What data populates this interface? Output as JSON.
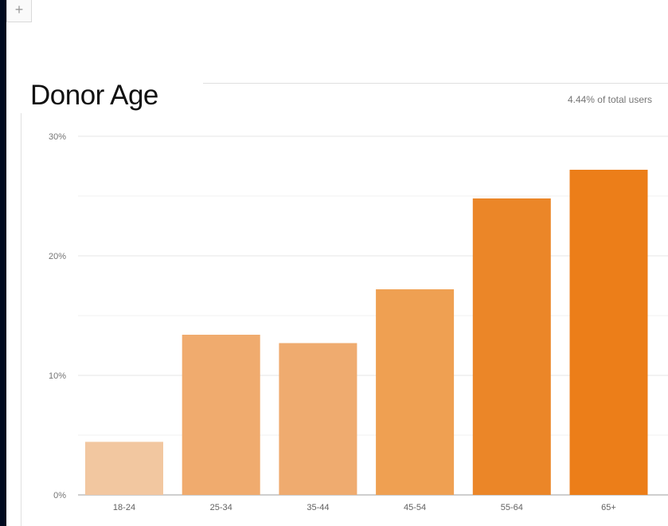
{
  "toolbar": {
    "add_label": "+"
  },
  "card": {
    "title": "Donor Age",
    "subtitle": "4.44% of total users"
  },
  "chart_data": {
    "type": "bar",
    "title": "Donor Age",
    "xlabel": "",
    "ylabel": "",
    "categories": [
      "18-24",
      "25-34",
      "35-44",
      "45-54",
      "55-64",
      "65+"
    ],
    "values": [
      4.44,
      13.4,
      12.7,
      17.2,
      24.8,
      27.2
    ],
    "colors": [
      "#f2c7a0",
      "#f0ab6e",
      "#efab6f",
      "#efa052",
      "#eb8628",
      "#ec7e19"
    ],
    "ylim": [
      0,
      30
    ],
    "yticks": [
      0,
      10,
      20,
      30
    ],
    "ytick_labels": [
      "0%",
      "10%",
      "20%",
      "30%"
    ],
    "grid": true,
    "legend": "none"
  }
}
